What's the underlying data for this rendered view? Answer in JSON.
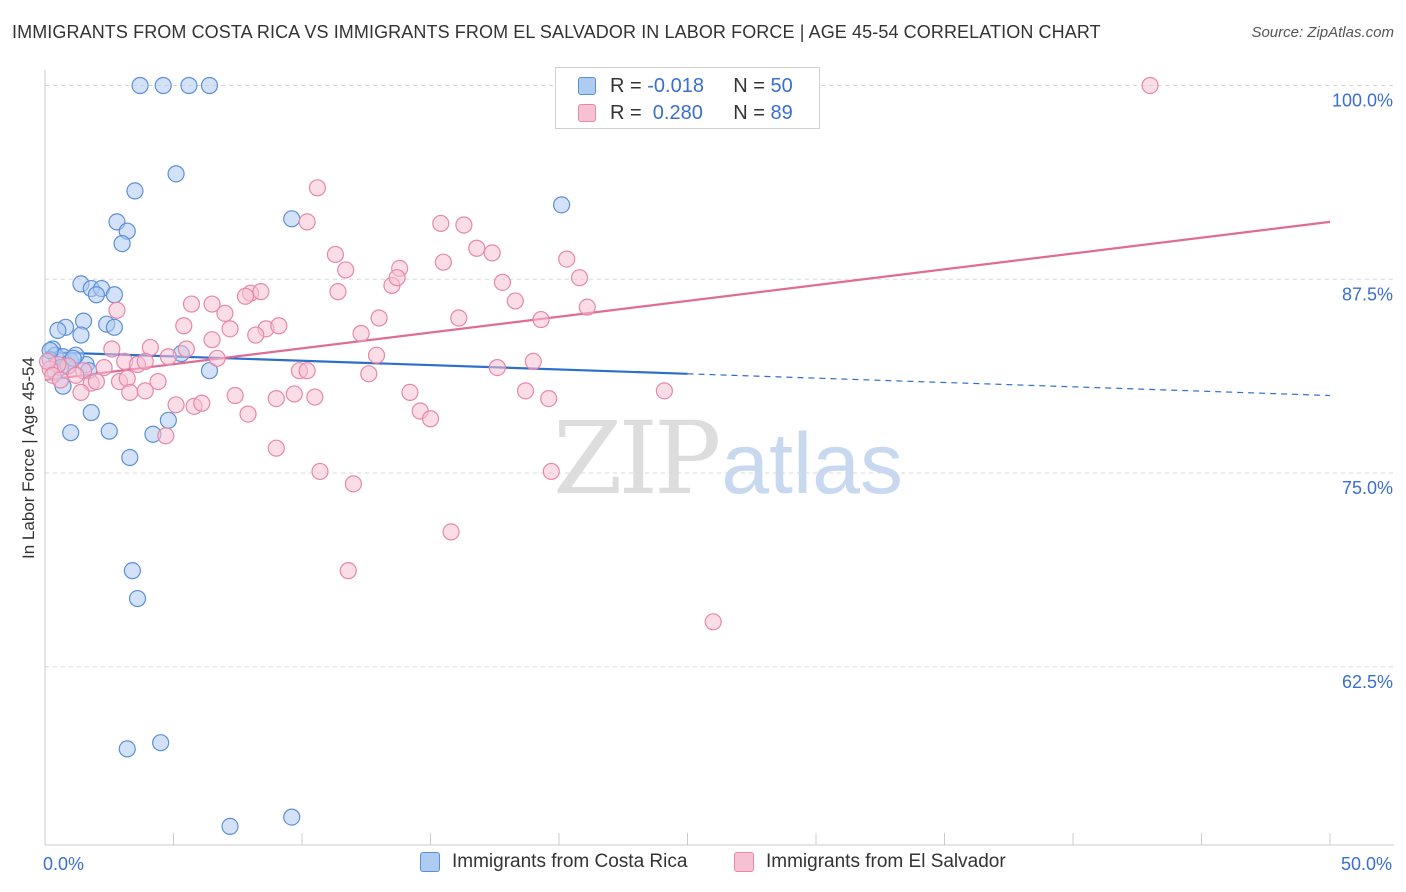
{
  "header": {
    "title": "IMMIGRANTS FROM COSTA RICA VS IMMIGRANTS FROM EL SALVADOR IN LABOR FORCE | AGE 45-54 CORRELATION CHART",
    "source": "Source: ZipAtlas.com"
  },
  "watermark": {
    "zip": "ZIP",
    "atlas": "atlas"
  },
  "stats_legend": {
    "rows": [
      {
        "r_label": "R = ",
        "r_value": "-0.018",
        "n_label": "N = ",
        "n_value": "50"
      },
      {
        "r_label": "R = ",
        "r_value": " 0.280",
        "n_label": "N = ",
        "n_value": "89"
      }
    ]
  },
  "colors": {
    "blue_fill": "#aecbf2",
    "blue_stroke": "#5b8fd8",
    "blue_line": "#2f6fcc",
    "pink_fill": "#f6c1d3",
    "pink_stroke": "#e688a8",
    "pink_line": "#e06c96",
    "axis_text": "#3a6fd0",
    "grid": "#d8d8d8"
  },
  "chart_data": {
    "type": "scatter",
    "title": "IMMIGRANTS FROM COSTA RICA VS IMMIGRANTS FROM EL SALVADOR IN LABOR FORCE | AGE 45-54 CORRELATION CHART",
    "xlabel": "",
    "ylabel": "In Labor Force | Age 45-54",
    "xlim": [
      0,
      50
    ],
    "ylim": [
      51,
      101
    ],
    "x_tick_labels": [
      {
        "value": 0,
        "label": "0.0%"
      },
      {
        "value": 50,
        "label": "50.0%"
      }
    ],
    "y_tick_labels": [
      {
        "value": 100,
        "label": "100.0%"
      },
      {
        "value": 87.5,
        "label": "87.5%"
      },
      {
        "value": 75,
        "label": "75.0%"
      },
      {
        "value": 62.5,
        "label": "62.5%"
      }
    ],
    "grid": "horizontal dashed",
    "legend": "bottom-center",
    "series": [
      {
        "name": "Immigrants from Costa Rica",
        "color": "blue",
        "r": -0.018,
        "n": 50,
        "trend": {
          "x": [
            0,
            25
          ],
          "y": [
            82.8,
            81.4
          ]
        },
        "trend_extension": {
          "x": [
            25,
            50
          ],
          "y": [
            81.4,
            80.0
          ]
        },
        "points": [
          [
            3.7,
            100
          ],
          [
            4.6,
            100
          ],
          [
            5.6,
            100
          ],
          [
            6.4,
            100
          ],
          [
            5.1,
            94.3
          ],
          [
            3.5,
            93.2
          ],
          [
            9.6,
            91.4
          ],
          [
            20.1,
            92.3
          ],
          [
            2.8,
            91.2
          ],
          [
            3.2,
            90.6
          ],
          [
            3.0,
            89.8
          ],
          [
            1.4,
            87.2
          ],
          [
            1.8,
            86.9
          ],
          [
            2.2,
            86.9
          ],
          [
            2.0,
            86.5
          ],
          [
            2.7,
            86.5
          ],
          [
            1.5,
            84.8
          ],
          [
            0.8,
            84.4
          ],
          [
            0.5,
            84.2
          ],
          [
            2.4,
            84.6
          ],
          [
            2.7,
            84.4
          ],
          [
            1.4,
            83.9
          ],
          [
            0.3,
            83.0
          ],
          [
            0.4,
            82.6
          ],
          [
            0.2,
            82.3
          ],
          [
            0.7,
            82.5
          ],
          [
            1.0,
            82.2
          ],
          [
            1.6,
            82.0
          ],
          [
            1.2,
            82.6
          ],
          [
            0.9,
            81.9
          ],
          [
            1.7,
            81.6
          ],
          [
            0.4,
            81.5
          ],
          [
            0.6,
            81.8
          ],
          [
            5.3,
            82.7
          ],
          [
            6.4,
            81.6
          ],
          [
            0.7,
            80.6
          ],
          [
            1.8,
            78.9
          ],
          [
            4.8,
            78.4
          ],
          [
            1.0,
            77.6
          ],
          [
            2.5,
            77.7
          ],
          [
            4.2,
            77.5
          ],
          [
            3.3,
            76.0
          ],
          [
            3.4,
            68.7
          ],
          [
            3.6,
            66.9
          ],
          [
            3.2,
            57.2
          ],
          [
            4.5,
            57.6
          ],
          [
            7.2,
            52.2
          ],
          [
            9.6,
            52.8
          ],
          [
            0.2,
            82.9
          ],
          [
            1.1,
            82.4
          ]
        ]
      },
      {
        "name": "Immigrants from El Salvador",
        "color": "pink",
        "r": 0.28,
        "n": 89,
        "trend": {
          "x": [
            0,
            50
          ],
          "y": [
            81.0,
            91.2
          ]
        },
        "points": [
          [
            43.0,
            100
          ],
          [
            10.6,
            93.4
          ],
          [
            10.2,
            91.2
          ],
          [
            15.4,
            91.1
          ],
          [
            16.3,
            91.0
          ],
          [
            11.3,
            89.1
          ],
          [
            16.8,
            89.5
          ],
          [
            17.4,
            89.2
          ],
          [
            20.3,
            88.8
          ],
          [
            11.7,
            88.1
          ],
          [
            13.8,
            88.2
          ],
          [
            15.5,
            88.6
          ],
          [
            20.8,
            87.6
          ],
          [
            13.5,
            87.1
          ],
          [
            13.7,
            87.6
          ],
          [
            17.8,
            87.3
          ],
          [
            11.4,
            86.7
          ],
          [
            8.0,
            86.6
          ],
          [
            8.4,
            86.7
          ],
          [
            7.8,
            86.4
          ],
          [
            5.7,
            85.9
          ],
          [
            6.5,
            85.9
          ],
          [
            18.3,
            86.1
          ],
          [
            21.1,
            85.7
          ],
          [
            2.8,
            85.5
          ],
          [
            7.0,
            85.3
          ],
          [
            13.0,
            85.0
          ],
          [
            16.1,
            85.0
          ],
          [
            19.3,
            84.9
          ],
          [
            5.4,
            84.5
          ],
          [
            7.2,
            84.3
          ],
          [
            8.6,
            84.3
          ],
          [
            9.1,
            84.5
          ],
          [
            12.3,
            84.0
          ],
          [
            6.5,
            83.6
          ],
          [
            8.2,
            83.9
          ],
          [
            4.1,
            83.1
          ],
          [
            5.5,
            83.0
          ],
          [
            12.9,
            82.6
          ],
          [
            6.7,
            82.4
          ],
          [
            4.8,
            82.5
          ],
          [
            3.1,
            82.2
          ],
          [
            3.6,
            82.0
          ],
          [
            3.9,
            82.2
          ],
          [
            19.0,
            82.2
          ],
          [
            17.6,
            81.8
          ],
          [
            9.9,
            81.6
          ],
          [
            10.2,
            81.6
          ],
          [
            12.6,
            81.4
          ],
          [
            2.3,
            81.8
          ],
          [
            1.5,
            81.6
          ],
          [
            0.9,
            81.9
          ],
          [
            0.5,
            82.0
          ],
          [
            0.2,
            81.7
          ],
          [
            0.1,
            82.2
          ],
          [
            0.3,
            81.3
          ],
          [
            1.8,
            80.8
          ],
          [
            2.0,
            80.9
          ],
          [
            2.9,
            80.9
          ],
          [
            3.2,
            81.1
          ],
          [
            4.4,
            80.9
          ],
          [
            1.4,
            80.2
          ],
          [
            3.3,
            80.2
          ],
          [
            3.9,
            80.3
          ],
          [
            7.4,
            80.0
          ],
          [
            9.0,
            79.8
          ],
          [
            9.7,
            80.1
          ],
          [
            10.5,
            79.9
          ],
          [
            14.2,
            80.2
          ],
          [
            18.7,
            80.3
          ],
          [
            19.6,
            79.8
          ],
          [
            24.1,
            80.3
          ],
          [
            5.1,
            79.4
          ],
          [
            5.8,
            79.3
          ],
          [
            6.1,
            79.5
          ],
          [
            14.6,
            79.0
          ],
          [
            15.0,
            78.5
          ],
          [
            7.9,
            78.8
          ],
          [
            4.7,
            77.4
          ],
          [
            9.0,
            76.6
          ],
          [
            10.7,
            75.1
          ],
          [
            12.0,
            74.3
          ],
          [
            19.7,
            75.1
          ],
          [
            15.8,
            71.2
          ],
          [
            11.8,
            68.7
          ],
          [
            26.0,
            65.4
          ],
          [
            2.6,
            83.0
          ],
          [
            1.2,
            81.3
          ],
          [
            0.6,
            81.0
          ]
        ]
      }
    ]
  },
  "bottom_legend": {
    "items": [
      {
        "label": "Immigrants from Costa Rica"
      },
      {
        "label": "Immigrants from El Salvador"
      }
    ]
  }
}
